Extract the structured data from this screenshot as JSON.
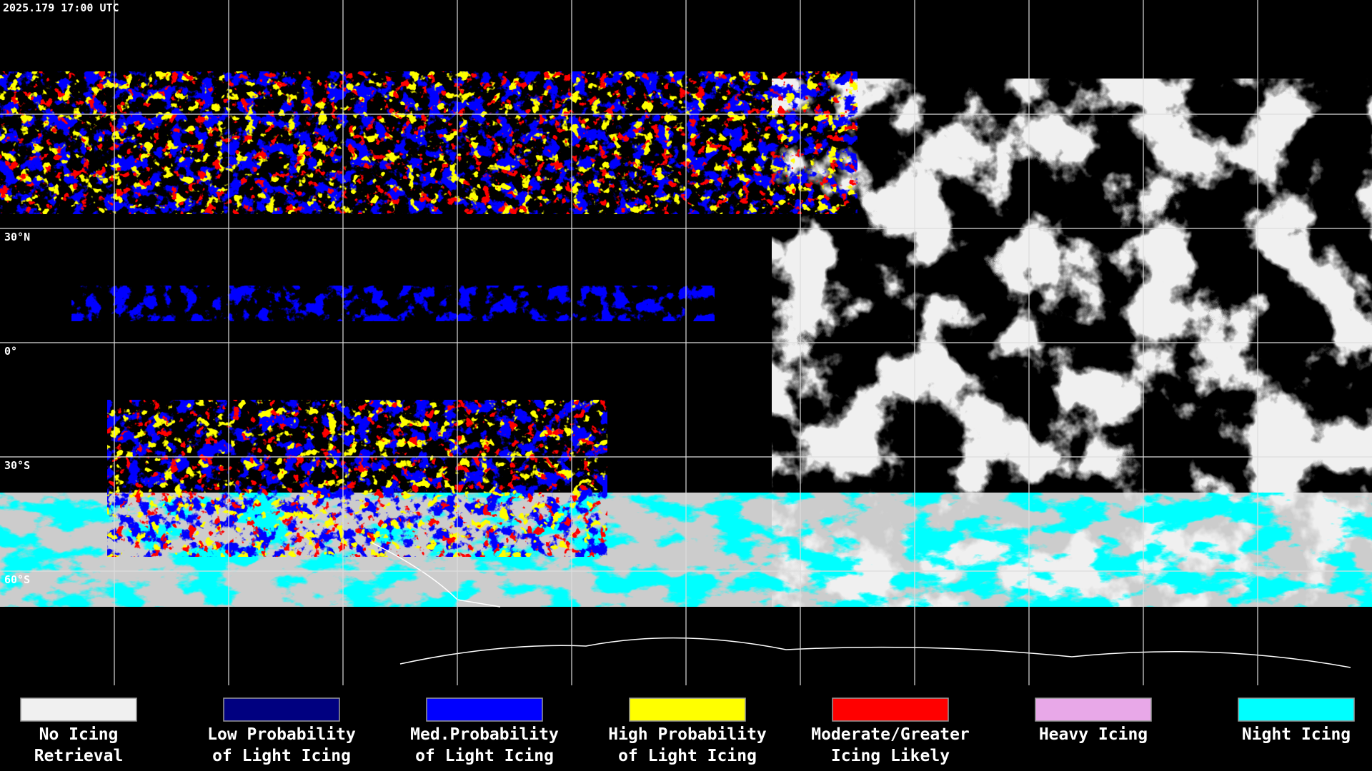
{
  "timestamp": "2025.179 17:00 UTC",
  "latitude_labels": [
    "30°N",
    "0°",
    "30°S",
    "60°S"
  ],
  "legend": [
    {
      "color": "#f0f0f0",
      "label": [
        "No Icing",
        "Retrieval"
      ]
    },
    {
      "color": "#000080",
      "label": [
        "Low Probability",
        "of Light Icing"
      ]
    },
    {
      "color": "#0000ff",
      "label": [
        "Med.Probability",
        "of Light Icing"
      ]
    },
    {
      "color": "#ffff00",
      "label": [
        "High Probability",
        "of Light Icing"
      ]
    },
    {
      "color": "#ff0000",
      "label": [
        "Moderate/Greater",
        "Icing Likely"
      ]
    },
    {
      "color": "#e8a8e8",
      "label": [
        "Heavy Icing"
      ]
    },
    {
      "color": "#00ffff",
      "label": [
        "Night Icing"
      ]
    }
  ]
}
